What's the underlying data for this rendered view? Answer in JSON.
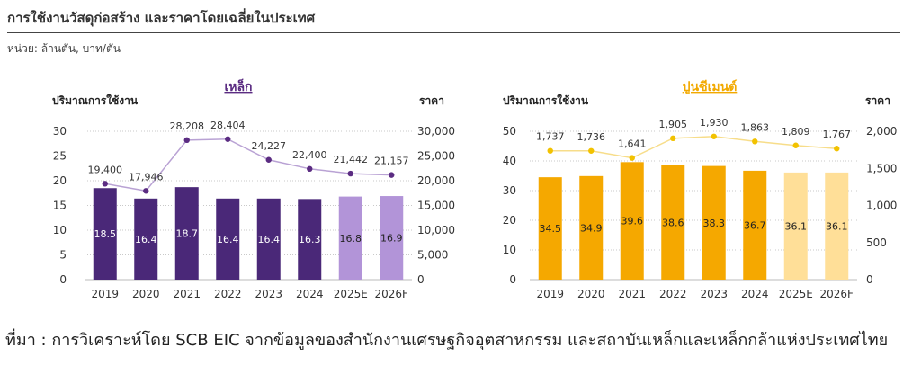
{
  "header": {
    "title": "การใช้งานวัสดุก่อสร้าง และราคาโดยเฉลี่ยในประเทศ",
    "unit": "หน่วย: ล้านตัน, บาท/ตัน"
  },
  "footer": {
    "source": "ที่มา : การวิเคราะห์โดย SCB EIC จากข้อมูลของสำนักงานเศรษฐกิจอุตสาหกรรม และสถาบันเหล็กและเหล็กกล้าแห่งประเทศไทย"
  },
  "chart_data": [
    {
      "type": "bar",
      "title": "เหล็ก",
      "title_color": "#5b2c82",
      "ylabel": "ปริมาณการใช้งาน",
      "y2label": "ราคา",
      "ylim": [
        0,
        30
      ],
      "y2lim": [
        0,
        30000
      ],
      "yticks": [
        "0",
        "5",
        "10",
        "15",
        "20",
        "25",
        "30"
      ],
      "y2ticks": [
        "0",
        "5,000",
        "10,000",
        "15,000",
        "20,000",
        "25,000",
        "30,000"
      ],
      "categories": [
        "2019",
        "2020",
        "2021",
        "2022",
        "2023",
        "2024",
        "2025E",
        "2026F"
      ],
      "series": [
        {
          "values": [
            18.5,
            16.4,
            18.7,
            16.4,
            16.4,
            16.3,
            16.8,
            16.9
          ],
          "labels": [
            "18.5",
            "16.4",
            "18.7",
            "16.4",
            "16.4",
            "16.3",
            "16.8",
            "16.9"
          ],
          "color": "#4a2878",
          "forecast_color": "#b294d8",
          "label_color": "#ffffff",
          "forecast_label_color": "#222222"
        },
        {
          "values": [
            19400,
            17946,
            28208,
            28404,
            24227,
            22400,
            21442,
            21157
          ],
          "labels": [
            "19,400",
            "17,946",
            "28,208",
            "28,404",
            "24,227",
            "22,400",
            "21,442",
            "21,157"
          ],
          "color": "#5b2c82",
          "line_color": "#b9a2d4"
        }
      ]
    },
    {
      "type": "bar",
      "title": "ปูนซีเมนต์",
      "title_color": "#f2a900",
      "ylabel": "ปริมาณการใช้งาน",
      "y2label": "ราคา",
      "ylim": [
        0,
        50
      ],
      "y2lim": [
        0,
        2000
      ],
      "yticks": [
        "0",
        "10",
        "20",
        "30",
        "40",
        "50"
      ],
      "y2ticks": [
        "0",
        "500",
        "1,000",
        "1,500",
        "2,000"
      ],
      "categories": [
        "2019",
        "2020",
        "2021",
        "2022",
        "2023",
        "2024",
        "2025E",
        "2026F"
      ],
      "series": [
        {
          "values": [
            34.5,
            34.9,
            39.6,
            38.6,
            38.3,
            36.7,
            36.1,
            36.1
          ],
          "labels": [
            "34.5",
            "34.9",
            "39.6",
            "38.6",
            "38.3",
            "36.7",
            "36.1",
            "36.1"
          ],
          "color": "#f5a800",
          "forecast_color": "#ffdf98",
          "label_color": "#222222",
          "forecast_label_color": "#222222"
        },
        {
          "values": [
            1737,
            1736,
            1641,
            1905,
            1930,
            1863,
            1809,
            1767
          ],
          "labels": [
            "1,737",
            "1,736",
            "1,641",
            "1,905",
            "1,930",
            "1,863",
            "1,809",
            "1,767"
          ],
          "color": "#f2c200",
          "line_color": "#f7dd8a"
        }
      ]
    }
  ]
}
